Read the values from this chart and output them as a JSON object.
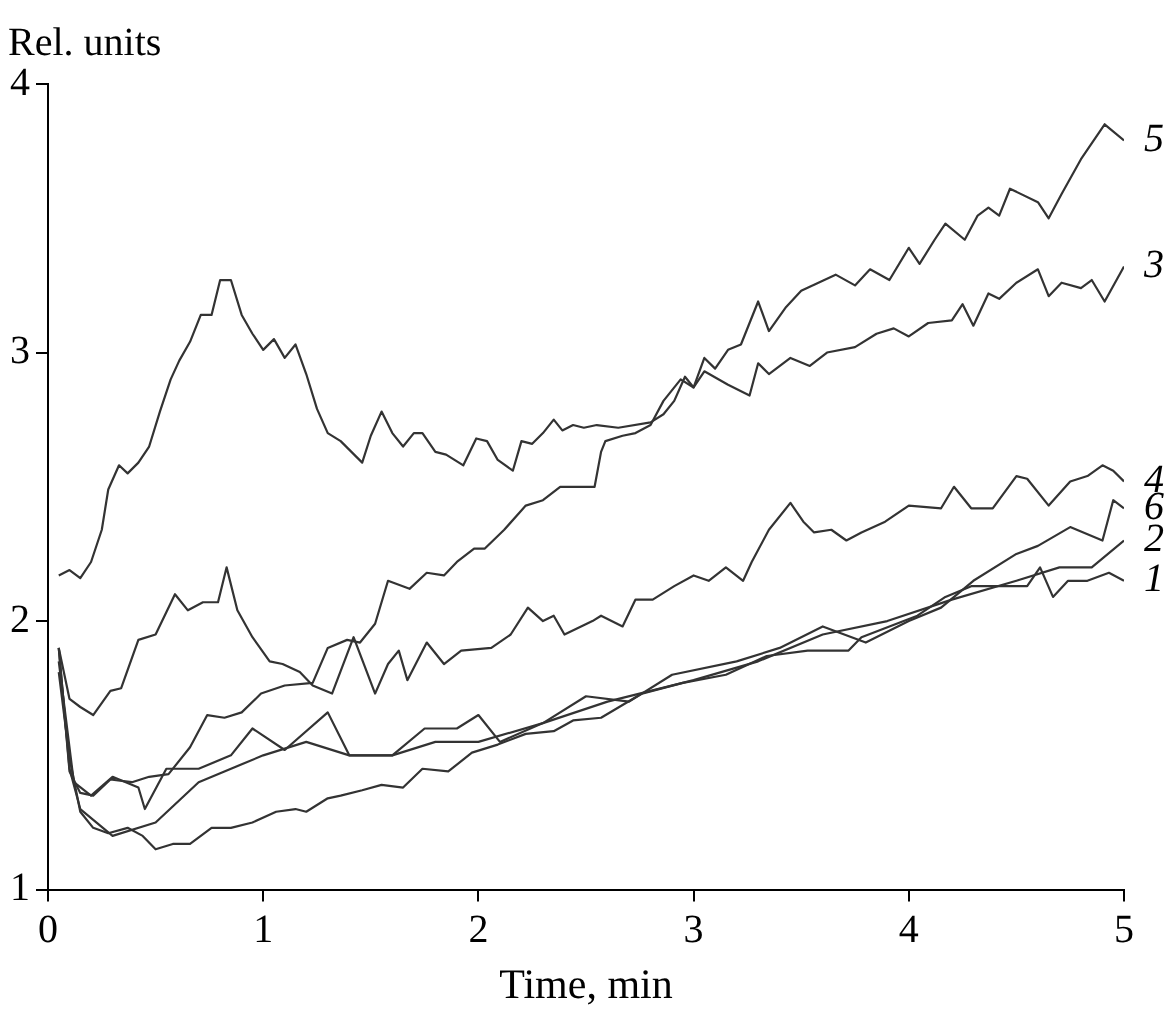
{
  "chart_data": {
    "type": "line",
    "xlabel": "Time, min",
    "ylabel": "Rel. units",
    "xlim": [
      0,
      5
    ],
    "ylim": [
      1,
      4
    ],
    "xticks": [
      0,
      1,
      2,
      3,
      4,
      5
    ],
    "yticks": [
      1,
      2,
      3,
      4
    ],
    "grid": false,
    "legend": false,
    "marker": "none",
    "line_style": "solid",
    "series": [
      {
        "name": "5",
        "color": "#333333",
        "x": [
          0.05,
          0.1,
          0.15,
          0.2,
          0.25,
          0.28,
          0.33,
          0.37,
          0.42,
          0.47,
          0.52,
          0.57,
          0.61,
          0.66,
          0.71,
          0.76,
          0.8,
          0.85,
          0.9,
          0.95,
          1.0,
          1.05,
          1.1,
          1.15,
          1.2,
          1.25,
          1.3,
          1.36,
          1.46,
          1.5,
          1.55,
          1.6,
          1.65,
          1.7,
          1.74,
          1.8,
          1.85,
          1.93,
          1.99,
          2.04,
          2.09,
          2.16,
          2.2,
          2.25,
          2.3,
          2.35,
          2.39,
          2.44,
          2.49,
          2.55,
          2.65,
          2.8,
          2.86,
          2.91,
          2.96,
          3.0,
          3.05,
          3.1,
          3.16,
          3.22,
          3.26,
          3.3,
          3.35,
          3.43,
          3.5,
          3.66,
          3.75,
          3.82,
          3.91,
          4.0,
          4.05,
          4.12,
          4.17,
          4.26,
          4.32,
          4.37,
          4.42,
          4.47,
          4.6,
          4.65,
          4.71,
          4.8,
          4.91,
          5.0
        ],
        "values": [
          2.17,
          2.19,
          2.16,
          2.22,
          2.34,
          2.49,
          2.58,
          2.55,
          2.59,
          2.65,
          2.78,
          2.9,
          2.97,
          3.04,
          3.14,
          3.14,
          3.27,
          3.27,
          3.14,
          3.07,
          3.01,
          3.05,
          2.98,
          3.03,
          2.92,
          2.79,
          2.7,
          2.67,
          2.59,
          2.69,
          2.78,
          2.7,
          2.65,
          2.7,
          2.7,
          2.63,
          2.62,
          2.58,
          2.68,
          2.67,
          2.6,
          2.56,
          2.67,
          2.66,
          2.7,
          2.75,
          2.71,
          2.73,
          2.72,
          2.73,
          2.72,
          2.74,
          2.77,
          2.82,
          2.91,
          2.87,
          2.98,
          2.94,
          3.01,
          3.03,
          3.11,
          3.19,
          3.08,
          3.17,
          3.23,
          3.29,
          3.25,
          3.31,
          3.27,
          3.39,
          3.33,
          3.42,
          3.48,
          3.42,
          3.51,
          3.54,
          3.51,
          3.61,
          3.56,
          3.5,
          3.59,
          3.72,
          3.85,
          3.79
        ]
      },
      {
        "name": "3",
        "color": "#333333",
        "x": [
          0.05,
          0.1,
          0.15,
          0.21,
          0.29,
          0.39,
          0.47,
          0.56,
          0.66,
          0.74,
          0.82,
          0.9,
          0.99,
          1.1,
          1.23,
          1.3,
          1.39,
          1.45,
          1.52,
          1.58,
          1.68,
          1.76,
          1.84,
          1.9,
          1.98,
          2.03,
          2.12,
          2.22,
          2.3,
          2.38,
          2.54,
          2.57,
          2.59,
          2.67,
          2.73,
          2.8,
          2.86,
          2.94,
          3.0,
          3.05,
          3.16,
          3.26,
          3.3,
          3.35,
          3.45,
          3.54,
          3.62,
          3.75,
          3.85,
          3.93,
          4.0,
          4.09,
          4.2,
          4.25,
          4.3,
          4.37,
          4.42,
          4.5,
          4.6,
          4.65,
          4.71,
          4.8,
          4.85,
          4.91,
          5.0
        ],
        "values": [
          1.9,
          1.44,
          1.36,
          1.35,
          1.41,
          1.4,
          1.42,
          1.43,
          1.53,
          1.65,
          1.64,
          1.66,
          1.73,
          1.76,
          1.77,
          1.9,
          1.93,
          1.92,
          1.99,
          2.15,
          2.12,
          2.18,
          2.17,
          2.22,
          2.27,
          2.27,
          2.34,
          2.43,
          2.45,
          2.5,
          2.5,
          2.63,
          2.67,
          2.69,
          2.7,
          2.73,
          2.82,
          2.9,
          2.87,
          2.93,
          2.88,
          2.84,
          2.96,
          2.92,
          2.98,
          2.95,
          3.0,
          3.02,
          3.07,
          3.09,
          3.06,
          3.11,
          3.12,
          3.18,
          3.1,
          3.22,
          3.2,
          3.26,
          3.31,
          3.21,
          3.26,
          3.24,
          3.27,
          3.19,
          3.32
        ]
      },
      {
        "name": "4",
        "color": "#333333",
        "x": [
          0.05,
          0.1,
          0.15,
          0.21,
          0.29,
          0.34,
          0.42,
          0.5,
          0.59,
          0.65,
          0.72,
          0.79,
          0.83,
          0.88,
          0.95,
          1.03,
          1.09,
          1.17,
          1.23,
          1.32,
          1.42,
          1.52,
          1.58,
          1.63,
          1.67,
          1.76,
          1.84,
          1.92,
          2.06,
          2.15,
          2.23,
          2.3,
          2.35,
          2.4,
          2.53,
          2.57,
          2.67,
          2.73,
          2.81,
          2.91,
          3.0,
          3.07,
          3.15,
          3.23,
          3.27,
          3.35,
          3.45,
          3.51,
          3.56,
          3.64,
          3.71,
          3.78,
          3.89,
          4.0,
          4.15,
          4.21,
          4.29,
          4.39,
          4.5,
          4.55,
          4.65,
          4.75,
          4.83,
          4.9,
          4.95,
          5.0
        ],
        "values": [
          1.9,
          1.71,
          1.68,
          1.65,
          1.74,
          1.75,
          1.93,
          1.95,
          2.1,
          2.04,
          2.07,
          2.07,
          2.2,
          2.04,
          1.94,
          1.85,
          1.84,
          1.81,
          1.76,
          1.73,
          1.94,
          1.73,
          1.84,
          1.89,
          1.78,
          1.92,
          1.84,
          1.89,
          1.9,
          1.95,
          2.05,
          2.0,
          2.02,
          1.95,
          2.0,
          2.02,
          1.98,
          2.08,
          2.08,
          2.13,
          2.17,
          2.15,
          2.2,
          2.15,
          2.22,
          2.34,
          2.44,
          2.37,
          2.33,
          2.34,
          2.3,
          2.33,
          2.37,
          2.43,
          2.42,
          2.5,
          2.42,
          2.42,
          2.54,
          2.53,
          2.43,
          2.52,
          2.54,
          2.58,
          2.56,
          2.52
        ]
      },
      {
        "name": "6",
        "color": "#333333",
        "x": [
          0.05,
          0.12,
          0.2,
          0.3,
          0.42,
          0.45,
          0.55,
          0.7,
          0.85,
          0.95,
          1.1,
          1.3,
          1.4,
          1.6,
          1.75,
          1.9,
          2.0,
          2.1,
          2.3,
          2.5,
          2.7,
          2.9,
          3.2,
          3.4,
          3.6,
          3.8,
          4.0,
          4.15,
          4.3,
          4.5,
          4.6,
          4.75,
          4.9,
          4.95,
          5.0
        ],
        "values": [
          1.85,
          1.4,
          1.35,
          1.42,
          1.38,
          1.3,
          1.45,
          1.45,
          1.5,
          1.6,
          1.52,
          1.66,
          1.5,
          1.5,
          1.6,
          1.6,
          1.65,
          1.55,
          1.62,
          1.72,
          1.7,
          1.8,
          1.85,
          1.9,
          1.98,
          1.92,
          2.0,
          2.05,
          2.15,
          2.25,
          2.28,
          2.35,
          2.3,
          2.45,
          2.42
        ]
      },
      {
        "name": "2",
        "color": "#333333",
        "x": [
          0.05,
          0.1,
          0.15,
          0.3,
          0.5,
          0.7,
          1.0,
          1.2,
          1.4,
          1.6,
          1.8,
          2.0,
          2.3,
          2.6,
          3.0,
          3.3,
          3.6,
          3.9,
          4.2,
          4.5,
          4.7,
          4.85,
          5.0
        ],
        "values": [
          1.9,
          1.45,
          1.3,
          1.2,
          1.25,
          1.4,
          1.5,
          1.55,
          1.5,
          1.5,
          1.55,
          1.55,
          1.62,
          1.7,
          1.78,
          1.85,
          1.95,
          2.0,
          2.08,
          2.15,
          2.2,
          2.2,
          2.3
        ]
      },
      {
        "name": "1",
        "color": "#333333",
        "x": [
          0.05,
          0.1,
          0.15,
          0.21,
          0.28,
          0.37,
          0.44,
          0.5,
          0.58,
          0.66,
          0.76,
          0.85,
          0.95,
          1.06,
          1.15,
          1.2,
          1.3,
          1.36,
          1.46,
          1.55,
          1.65,
          1.74,
          1.86,
          1.97,
          2.09,
          2.22,
          2.35,
          2.44,
          2.57,
          2.76,
          2.95,
          3.15,
          3.34,
          3.53,
          3.72,
          3.78,
          3.91,
          4.04,
          4.17,
          4.29,
          4.42,
          4.55,
          4.61,
          4.67,
          4.74,
          4.83,
          4.93,
          5.0
        ],
        "values": [
          1.81,
          1.49,
          1.29,
          1.23,
          1.21,
          1.23,
          1.2,
          1.15,
          1.17,
          1.17,
          1.23,
          1.23,
          1.25,
          1.29,
          1.3,
          1.29,
          1.34,
          1.35,
          1.37,
          1.39,
          1.38,
          1.45,
          1.44,
          1.51,
          1.54,
          1.58,
          1.59,
          1.63,
          1.64,
          1.73,
          1.77,
          1.8,
          1.87,
          1.89,
          1.89,
          1.94,
          1.98,
          2.02,
          2.09,
          2.13,
          2.13,
          2.13,
          2.2,
          2.09,
          2.15,
          2.15,
          2.18,
          2.15
        ]
      }
    ]
  }
}
